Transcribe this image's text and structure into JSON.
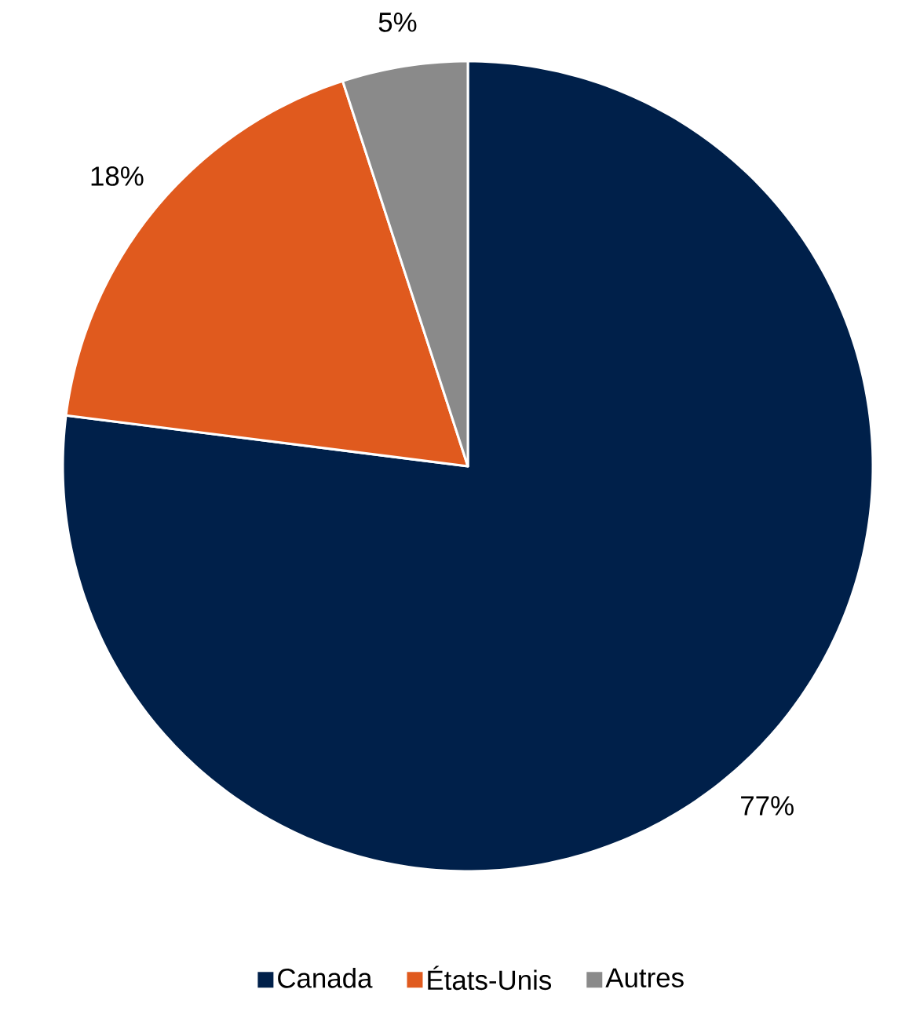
{
  "chart_data": {
    "type": "pie",
    "categories": [
      "Canada",
      "États-Unis",
      "Autres"
    ],
    "values": [
      77,
      18,
      5
    ],
    "colors": [
      "#00204a",
      "#e05a1e",
      "#8a8a8a"
    ],
    "value_labels": [
      "77%",
      "18%",
      "5%"
    ],
    "legend": "bottom"
  }
}
